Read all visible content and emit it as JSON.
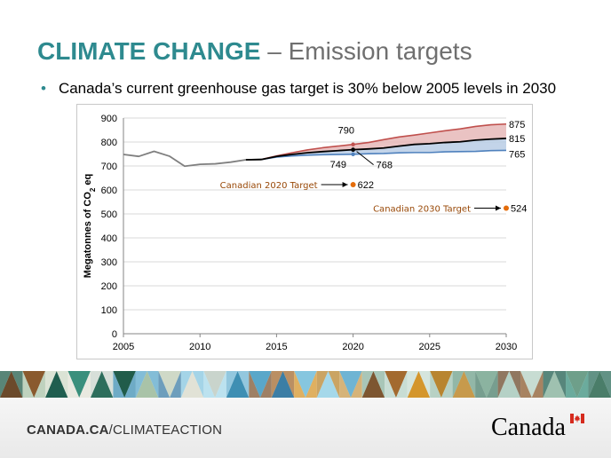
{
  "slide": {
    "title_strong": "CLIMATE CHANGE",
    "title_rest": " – Emission targets",
    "bullet": "Canada’s current greenhouse gas target is 30% below 2005 levels in 2030"
  },
  "footer": {
    "link_strong": "CANADA.CA",
    "link_rest": "/CLIMATEACTION",
    "wordmark": "Canada"
  },
  "colors": {
    "title": "#2e8a8f",
    "historical": "#7f7f7f",
    "central": "#000000",
    "high": "#c0504d",
    "low": "#4f81bd",
    "band_high": "#e6b9b8",
    "band_low": "#b9cde5",
    "target": "#e46c0a",
    "target_label": "#984807"
  },
  "chart_data": {
    "type": "line",
    "ylabel": "Megatonnes of CO2 eq",
    "xlim": [
      2005,
      2030
    ],
    "ylim": [
      0,
      900
    ],
    "xticks": [
      2005,
      2010,
      2015,
      2020,
      2025,
      2030
    ],
    "yticks": [
      0,
      100,
      200,
      300,
      400,
      500,
      600,
      700,
      800,
      900
    ],
    "grid": true,
    "series": [
      {
        "key": "historical",
        "x": [
          2005,
          2006,
          2007,
          2008,
          2009,
          2010,
          2011,
          2012,
          2013,
          2014
        ],
        "values": [
          748,
          740,
          761,
          741,
          699,
          707,
          709,
          716,
          726,
          727
        ]
      },
      {
        "key": "central",
        "x": [
          2013,
          2014,
          2015,
          2016,
          2017,
          2018,
          2019,
          2020,
          2021,
          2022,
          2023,
          2024,
          2025,
          2026,
          2027,
          2028,
          2029,
          2030
        ],
        "values": [
          726,
          727,
          740,
          748,
          755,
          760,
          764,
          768,
          771,
          775,
          783,
          790,
          793,
          798,
          801,
          808,
          812,
          815
        ]
      },
      {
        "key": "high",
        "x": [
          2014,
          2015,
          2016,
          2017,
          2018,
          2019,
          2020,
          2021,
          2022,
          2023,
          2024,
          2025,
          2026,
          2027,
          2028,
          2029,
          2030
        ],
        "values": [
          727,
          742,
          755,
          767,
          776,
          783,
          790,
          798,
          810,
          821,
          829,
          838,
          847,
          855,
          865,
          872,
          875
        ]
      },
      {
        "key": "low",
        "x": [
          2014,
          2015,
          2016,
          2017,
          2018,
          2019,
          2020,
          2021,
          2022,
          2023,
          2024,
          2025,
          2026,
          2027,
          2028,
          2029,
          2030
        ],
        "values": [
          727,
          737,
          742,
          745,
          747,
          748,
          749,
          751,
          752,
          755,
          756,
          756,
          759,
          760,
          761,
          764,
          765
        ]
      }
    ],
    "annotations": [
      {
        "x": 2020,
        "y": 790,
        "text": "790"
      },
      {
        "x": 2020,
        "y": 749,
        "text": "749"
      },
      {
        "x": 2020,
        "y": 768,
        "text": "768"
      },
      {
        "x": 2030,
        "y": 875,
        "text": "875"
      },
      {
        "x": 2030,
        "y": 815,
        "text": "815"
      },
      {
        "x": 2030,
        "y": 765,
        "text": "765"
      }
    ],
    "targets": [
      {
        "label": "Canadian 2020 Target",
        "x": 2020,
        "value": 622,
        "text": "622"
      },
      {
        "label": "Canadian 2030 Target",
        "x": 2030,
        "value": 524,
        "text": "524"
      }
    ]
  }
}
